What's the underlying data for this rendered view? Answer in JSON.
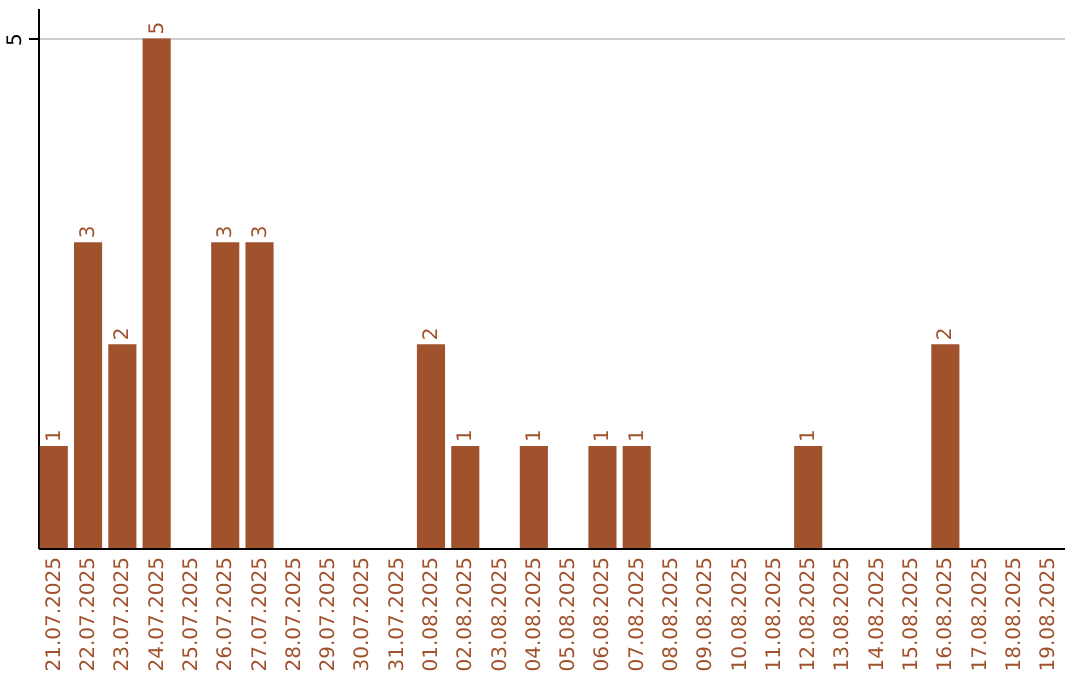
{
  "chart_data": {
    "type": "bar",
    "categories": [
      "21.07.2025",
      "22.07.2025",
      "23.07.2025",
      "24.07.2025",
      "25.07.2025",
      "26.07.2025",
      "27.07.2025",
      "28.07.2025",
      "29.07.2025",
      "30.07.2025",
      "31.07.2025",
      "01.08.2025",
      "02.08.2025",
      "03.08.2025",
      "04.08.2025",
      "05.08.2025",
      "06.08.2025",
      "07.08.2025",
      "08.08.2025",
      "09.08.2025",
      "10.08.2025",
      "11.08.2025",
      "12.08.2025",
      "13.08.2025",
      "14.08.2025",
      "15.08.2025",
      "16.08.2025",
      "17.08.2025",
      "18.08.2025",
      "19.08.2025"
    ],
    "values": [
      1,
      3,
      2,
      5,
      0,
      3,
      3,
      0,
      0,
      0,
      0,
      2,
      1,
      0,
      1,
      0,
      1,
      1,
      0,
      0,
      0,
      0,
      1,
      0,
      0,
      0,
      2,
      0,
      0,
      0
    ],
    "value_labels": [
      "1",
      "3",
      "2",
      "5",
      null,
      "3",
      "3",
      null,
      null,
      null,
      null,
      "2",
      "1",
      null,
      "1",
      null,
      "1",
      "1",
      null,
      null,
      null,
      null,
      "1",
      null,
      null,
      null,
      "2",
      null,
      null,
      null
    ],
    "color": "#a0522d",
    "ylim": [
      0,
      5.3
    ],
    "yticks": [
      5
    ],
    "grid": "y"
  }
}
